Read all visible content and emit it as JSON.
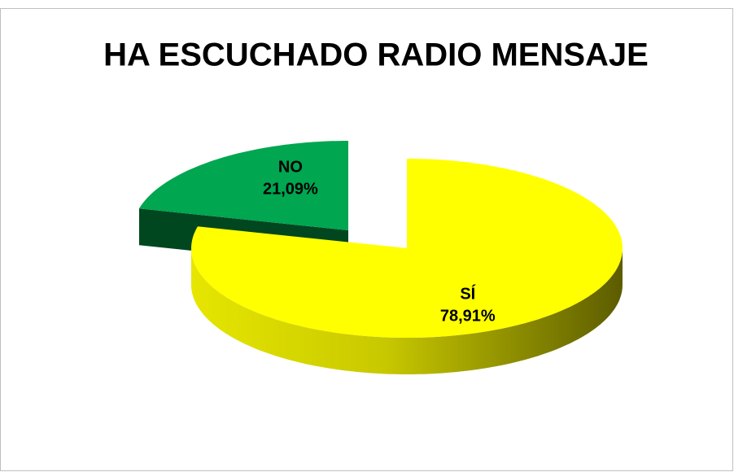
{
  "chart_data": {
    "type": "pie3d",
    "title": "HA ESCUCHADO RADIO MENSAJE",
    "categories": [
      "SÍ",
      "NO"
    ],
    "values": [
      78.91,
      21.09
    ],
    "value_labels": [
      "78,91%",
      "21,09%"
    ],
    "colors": [
      "#ffff00",
      "#00a650"
    ]
  }
}
